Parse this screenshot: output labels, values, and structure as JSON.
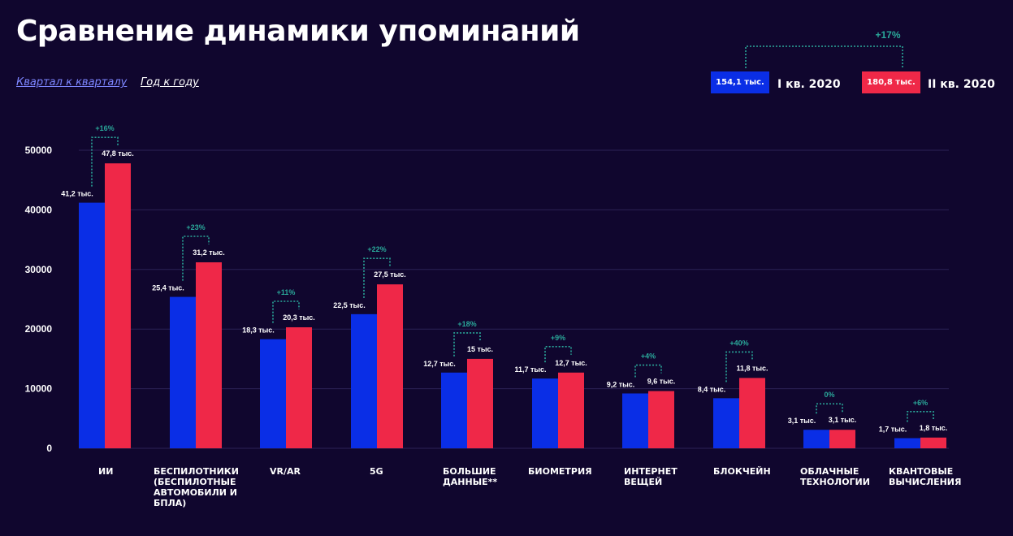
{
  "header": {
    "title": "Сравнение динамики упоминаний",
    "tabs": [
      {
        "label": "Квартал к кварталу"
      },
      {
        "label": "Год к году"
      }
    ]
  },
  "legend": {
    "growth": "+17%",
    "items": [
      {
        "value": "154,1 тыс.",
        "label": "I кв. 2020",
        "color": "#0a2ee6"
      },
      {
        "value": "180,8 тыс.",
        "label": "II кв. 2020",
        "color": "#ef2848"
      }
    ]
  },
  "colors": {
    "background": "#10062e",
    "q1": "#0a2ee6",
    "q2": "#ef2848",
    "growth": "#2aa89a",
    "grid": "#2b2256"
  },
  "chart_data": {
    "type": "bar",
    "title": "Сравнение динамики упоминаний",
    "ylim": [
      0,
      50000
    ],
    "yticks": [
      "0",
      "10000",
      "20000",
      "30000",
      "40000",
      "50000"
    ],
    "categories": [
      "ИИ",
      "БЕСПИЛОТНИКИ\n(БЕСПИЛОТНЫЕ\nАВТОМОБИЛИ И\nБПЛА)",
      "VR/AR",
      "5G",
      "БОЛЬШИЕ\nДАННЫЕ**",
      "БИОМЕТРИЯ",
      "ИНТЕРНЕТ\nВЕЩЕЙ",
      "БЛОКЧЕЙН",
      "ОБЛАЧНЫЕ\nТЕХНОЛОГИИ",
      "КВАНТОВЫЕ\nВЫЧИСЛЕНИЯ"
    ],
    "series": [
      {
        "name": "I кв. 2020",
        "values": [
          41200,
          25400,
          18300,
          22500,
          12700,
          11700,
          9200,
          8400,
          3100,
          1700
        ],
        "labels": [
          "41,2 тыс.",
          "25,4 тыс.",
          "18,3 тыс.",
          "22,5 тыс.",
          "12,7 тыс.",
          "11,7 тыс.",
          "9,2 тыс.",
          "8,4 тыс.",
          "3,1 тыс.",
          "1,7 тыс."
        ]
      },
      {
        "name": "II кв. 2020",
        "values": [
          47800,
          31200,
          20300,
          27500,
          15000,
          12700,
          9600,
          11800,
          3100,
          1800
        ],
        "labels": [
          "47,8 тыс.",
          "31,2 тыс.",
          "20,3 тыс.",
          "27,5 тыс.",
          "15 тыс.",
          "12,7 тыс.",
          "9,6 тыс.",
          "11,8 тыс.",
          "3,1 тыс.",
          "1,8 тыс."
        ]
      }
    ],
    "growth": [
      "+16%",
      "+23%",
      "+11%",
      "+22%",
      "+18%",
      "+9%",
      "+4%",
      "+40%",
      "0%",
      "+6%"
    ]
  }
}
